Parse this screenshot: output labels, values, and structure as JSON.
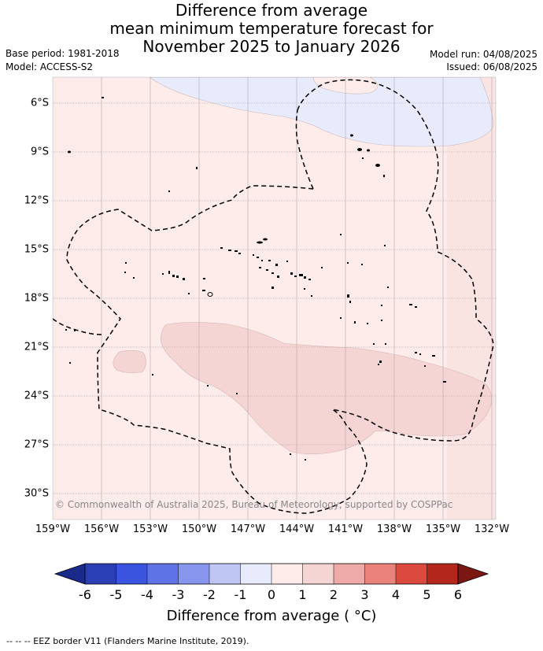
{
  "title": {
    "line1": "Difference from average",
    "line2": "mean minimum temperature forecast for",
    "line3": "November 2025 to January 2026"
  },
  "meta": {
    "base_period": "Base period: 1981-2018",
    "model": "Model: ACCESS-S2",
    "model_run": "Model run: 04/08/2025",
    "issued": "Issued: 06/08/2025"
  },
  "map": {
    "longitude_labels": [
      "159°W",
      "156°W",
      "153°W",
      "150°W",
      "147°W",
      "144°W",
      "141°W",
      "138°W",
      "135°W",
      "132°W"
    ],
    "latitude_labels": [
      "6°S",
      "9°S",
      "12°S",
      "15°S",
      "18°S",
      "21°S",
      "24°S",
      "27°S",
      "30°S"
    ],
    "credit": "© Commonwealth of Australia 2025, Bureau of Meteorology, supported by COSPPac",
    "colors": {
      "land": "#000000",
      "anomaly_0_to_1": "#fdecea",
      "anomaly_1_to_2": "#f5d5d3",
      "anomaly_minus1_to_0": "#e8ebfb",
      "eez_border": "#000000"
    }
  },
  "colorbar": {
    "ticks": [
      "-6",
      "-5",
      "-4",
      "-3",
      "-2",
      "-1",
      "0",
      "1",
      "2",
      "3",
      "4",
      "5",
      "6"
    ],
    "colors": [
      "#1a2a8a",
      "#2b3fb5",
      "#3a54e0",
      "#5e74e6",
      "#8795ec",
      "#bfc6f4",
      "#e8ebfb",
      "#fdecea",
      "#f5d5d3",
      "#eeaaa6",
      "#e8827b",
      "#dc4a3f",
      "#b3261c",
      "#7a1712"
    ],
    "label": "Difference from average ( °C)"
  },
  "footnote": "--  --  -- EEZ border V11 (Flanders Marine Institute, 2019)."
}
